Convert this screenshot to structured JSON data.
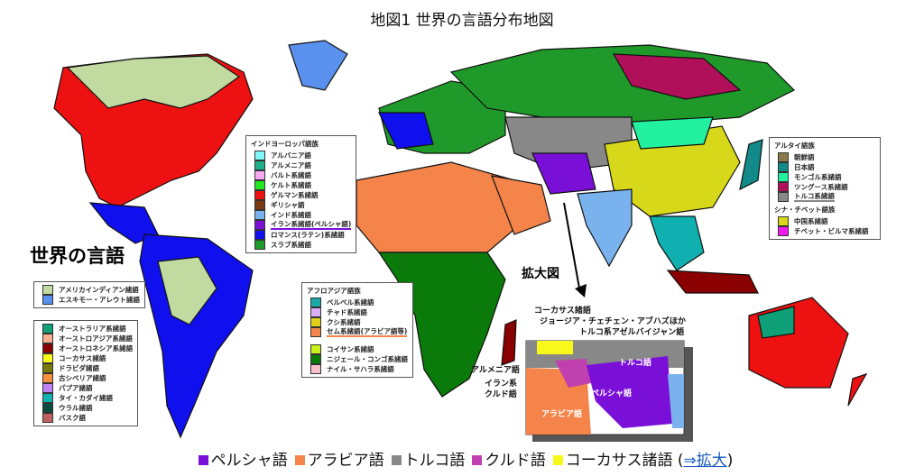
{
  "title": "地図1 世界の言語分布地図",
  "map_heading": "世界の言語",
  "zoom_label": "拡大図",
  "legends": {
    "indo_european": {
      "heading": "インドヨーロッパ語族",
      "items": [
        {
          "label": "アルバニア語",
          "color": "#7ff7f7"
        },
        {
          "label": "アルメニア語",
          "color": "#1fb08a"
        },
        {
          "label": "バルト系諸語",
          "color": "#f7a8f0"
        },
        {
          "label": "ケルト系諸語",
          "color": "#22e822"
        },
        {
          "label": "ゲルマン系諸語",
          "color": "#ee1111"
        },
        {
          "label": "ギリシャ語",
          "color": "#7a3a12"
        },
        {
          "label": "インド系諸語",
          "color": "#7ab2ee"
        },
        {
          "label": "イラン系諸語(ペルシャ語)",
          "color": "#7a10d8",
          "underline": true
        },
        {
          "label": "ロマンス(ラテン)系諸語",
          "color": "#1010ee"
        },
        {
          "label": "スラブ系諸語",
          "color": "#1f9a2a"
        }
      ]
    },
    "altai": {
      "heading": "アルタイ語族",
      "items": [
        {
          "label": "朝鮮語",
          "color": "#8a7a4a"
        },
        {
          "label": "日本語",
          "color": "#128a8a"
        },
        {
          "label": "モンゴル系諸語",
          "color": "#22f2a0"
        },
        {
          "label": "ツングース系諸語",
          "color": "#b0105a"
        },
        {
          "label": "トルコ系諸語",
          "color": "#888888",
          "underline": true
        }
      ]
    },
    "sino_tibetan": {
      "heading": "シナ・チベット語族",
      "items": [
        {
          "label": "中国系諸語",
          "color": "#d8d81a"
        },
        {
          "label": "チベット・ビルマ系諸語",
          "color": "#f01af0"
        }
      ]
    },
    "afro_asiatic": {
      "heading": "アフロアジア語族",
      "items": [
        {
          "label": "ベルベル系諸語",
          "color": "#1aa8a8"
        },
        {
          "label": "チャド系諸語",
          "color": "#d8b0f8"
        },
        {
          "label": "クシ系諸語",
          "color": "#e0d01a"
        },
        {
          "label": "セム系諸語(アラビア語等)",
          "color": "#f5844a",
          "underline": true
        }
      ]
    },
    "african": {
      "items": [
        {
          "label": "コイサン系諸語",
          "color": "#ccf01a"
        },
        {
          "label": "ニジェール・コンゴ系諸語",
          "color": "#0a7a0a"
        },
        {
          "label": "ナイル・サハラ系諸語",
          "color": "#f8c0c8"
        }
      ]
    },
    "americas": {
      "items": [
        {
          "label": "アメリカインディアン諸語",
          "color": "#c0daa0"
        },
        {
          "label": "エスキモー・アレウト諸語",
          "color": "#5a90ee"
        }
      ]
    },
    "other": {
      "items": [
        {
          "label": "オーストラリア系諸語",
          "color": "#10a078"
        },
        {
          "label": "オーストロアジア系諸語",
          "color": "#f8b090"
        },
        {
          "label": "オーストロネシア系諸語",
          "color": "#8a0000"
        },
        {
          "label": "コーカサス諸語",
          "color": "#f8f81a"
        },
        {
          "label": "ドラビダ諸語",
          "color": "#7a7a0a"
        },
        {
          "label": "古シベリア諸語",
          "color": "#f89040"
        },
        {
          "label": "パプア諸語",
          "color": "#c080f8"
        },
        {
          "label": "タイ・カダイ諸語",
          "color": "#10b0b0"
        },
        {
          "label": "ウラル諸語",
          "color": "#0a4a40"
        },
        {
          "label": "バスク語",
          "color": "#c06060"
        }
      ]
    }
  },
  "inset_labels": {
    "caucasus": "コーカサス諸語",
    "georgian": "ジョージア・チェチェン・アブハズほか",
    "azeri": "トルコ系アゼルバイジャン語",
    "armenian": "アルメニア語",
    "kurdish_1": "イラン系",
    "kurdish_2": "クルド語",
    "turkish": "トルコ語",
    "persian": "ペルシャ語",
    "arabic": "アラビア語"
  },
  "bottom_legend": {
    "items": [
      {
        "label": "ペルシャ語",
        "color": "#7a10d8"
      },
      {
        "label": "アラビア語",
        "color": "#f5844a"
      },
      {
        "label": "トルコ語",
        "color": "#888888"
      },
      {
        "label": "クルド語",
        "color": "#c040b0"
      },
      {
        "label": "コーカサス諸語",
        "color": "#f8f81a"
      }
    ],
    "link_prefix": "(",
    "link": "⇒拡大",
    "link_suffix": ")"
  }
}
